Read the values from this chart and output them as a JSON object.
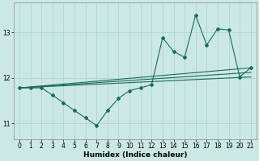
{
  "xlabel": "Humidex (Indice chaleur)",
  "xlim": [
    -0.5,
    21.5
  ],
  "ylim": [
    10.65,
    13.65
  ],
  "yticks": [
    11,
    12,
    13
  ],
  "xticks": [
    0,
    1,
    2,
    3,
    4,
    5,
    6,
    7,
    8,
    9,
    10,
    11,
    12,
    13,
    14,
    15,
    16,
    17,
    18,
    19,
    20,
    21
  ],
  "bg_color": "#cce8e4",
  "line_color": "#1a6b5a",
  "grid_color": "#a8d5cc",
  "line1_x": [
    0,
    1,
    2,
    3,
    4,
    5,
    6,
    7,
    8,
    9,
    10,
    11,
    12,
    13,
    14,
    15,
    16,
    17,
    18,
    19,
    20,
    21
  ],
  "line1_y": [
    11.78,
    11.78,
    11.78,
    11.62,
    11.45,
    11.28,
    11.12,
    10.95,
    11.28,
    11.55,
    11.72,
    11.78,
    11.85,
    12.88,
    12.58,
    12.45,
    13.38,
    12.72,
    13.08,
    13.05,
    12.02,
    12.22
  ],
  "line2_x": [
    0,
    21
  ],
  "line2_y": [
    11.78,
    12.22
  ],
  "line3_x": [
    0,
    21
  ],
  "line3_y": [
    11.78,
    12.12
  ],
  "line4_x": [
    0,
    21
  ],
  "line4_y": [
    11.78,
    12.02
  ],
  "xlabel_fontsize": 6.5,
  "tick_fontsize": 5.5
}
